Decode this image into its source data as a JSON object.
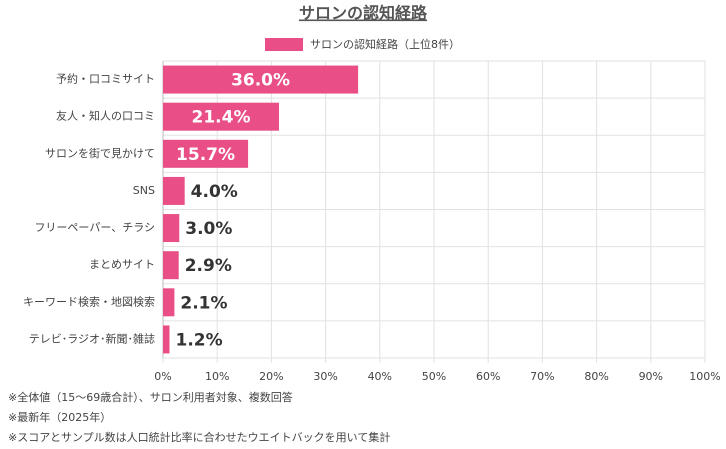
{
  "chart_data": {
    "type": "hbar",
    "title": "サロンの認知経路",
    "legend": "サロンの認知経路（上位8件）",
    "categories": [
      "予約・口コミサイト",
      "友人・知人の口コミ",
      "サロンを街で見かけて",
      "SNS",
      "フリーペーパー、チラシ",
      "まとめサイト",
      "キーワード検索・地図検索",
      "テレビ･ラジオ･新聞･雑誌"
    ],
    "values": [
      36.0,
      21.4,
      15.7,
      4.0,
      3.0,
      2.9,
      2.1,
      1.2
    ],
    "value_labels": [
      "36.0%",
      "21.4%",
      "15.7%",
      "4.0%",
      "3.0%",
      "2.9%",
      "2.1%",
      "1.2%"
    ],
    "color": "#e94f86",
    "xlim": [
      0,
      100
    ],
    "xticks": [
      {
        "value": 0,
        "label": "0%"
      },
      {
        "value": 10,
        "label": "10%"
      },
      {
        "value": 20,
        "label": "20%"
      },
      {
        "value": 30,
        "label": "30%"
      },
      {
        "value": 40,
        "label": "40%"
      },
      {
        "value": 50,
        "label": "50%"
      },
      {
        "value": 60,
        "label": "60%"
      },
      {
        "value": 70,
        "label": "70%"
      },
      {
        "value": 80,
        "label": "80%"
      },
      {
        "value": 90,
        "label": "90%"
      },
      {
        "value": 100,
        "label": "100%"
      }
    ],
    "grid": true,
    "notes": [
      "※全体値（15～69歳合計）、サロン利用者対象、複数回答",
      "※最新年（2025年）",
      "※スコアとサンプル数は人口統計比率に合わせたウエイトバックを用いて集計"
    ]
  }
}
